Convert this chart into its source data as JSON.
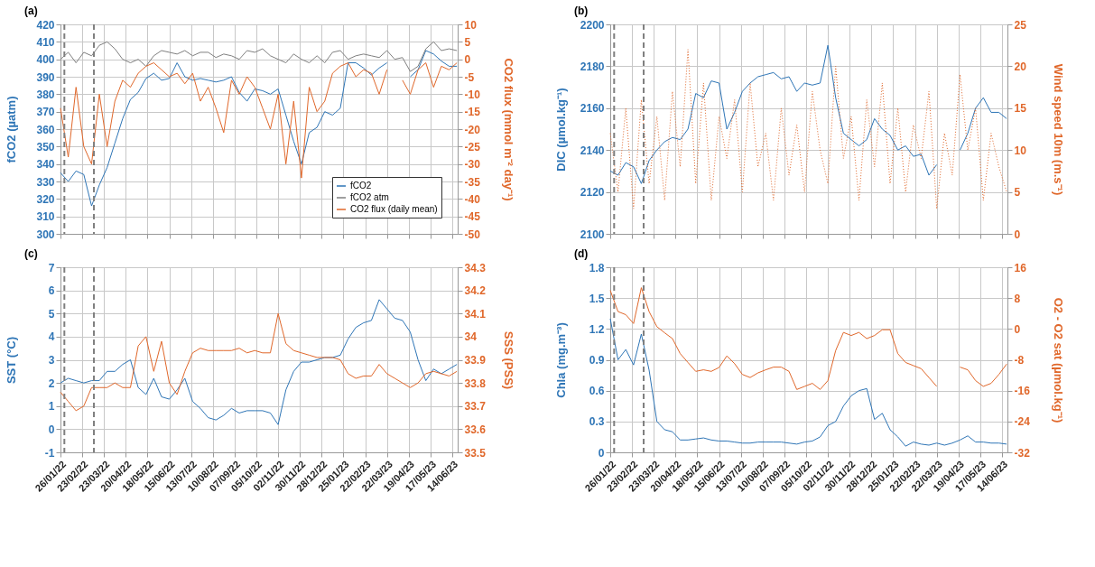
{
  "chart_data": [
    {
      "type": "line",
      "title": "(a)",
      "ylabel": "fCO2 (µatm)",
      "y2label": "CO2 flux (mmol m⁻² day⁻¹)",
      "x": [
        "2022-01-26",
        "2022-02-05",
        "2022-02-15",
        "2022-02-25",
        "2022-03-07",
        "2022-03-17",
        "2022-03-27",
        "2022-04-06",
        "2022-04-16",
        "2022-04-26",
        "2022-05-06",
        "2022-05-16",
        "2022-05-26",
        "2022-06-05",
        "2022-06-15",
        "2022-06-25",
        "2022-07-05",
        "2022-07-15",
        "2022-07-25",
        "2022-08-04",
        "2022-08-14",
        "2022-08-24",
        "2022-09-03",
        "2022-09-13",
        "2022-09-23",
        "2022-10-03",
        "2022-10-13",
        "2022-10-23",
        "2022-11-02",
        "2022-11-12",
        "2022-11-22",
        "2022-12-02",
        "2022-12-12",
        "2022-12-22",
        "2023-01-01",
        "2023-01-11",
        "2023-01-21",
        "2023-01-31",
        "2023-02-10",
        "2023-02-20",
        "2023-03-02",
        "2023-03-12",
        "2023-03-22",
        "2023-04-01",
        "2023-04-11",
        "2023-04-21",
        "2023-05-01",
        "2023-05-11",
        "2023-05-21",
        "2023-05-31",
        "2023-06-10",
        "2023-06-20"
      ],
      "xlim": [
        "2022-01-26",
        "2023-06-21"
      ],
      "xticks": [
        {
          "value": "2022-01-26",
          "label": null
        },
        {
          "value": "2022-02-23",
          "label": null
        },
        {
          "value": "2022-03-23",
          "label": null
        },
        {
          "value": "2022-04-20",
          "label": null
        },
        {
          "value": "2022-05-18",
          "label": null
        },
        {
          "value": "2022-06-15",
          "label": null
        },
        {
          "value": "2022-07-13",
          "label": null
        },
        {
          "value": "2022-08-10",
          "label": null
        },
        {
          "value": "2022-09-07",
          "label": null
        },
        {
          "value": "2022-10-05",
          "label": null
        },
        {
          "value": "2022-11-02",
          "label": null
        },
        {
          "value": "2022-11-30",
          "label": null
        },
        {
          "value": "2022-12-28",
          "label": null
        },
        {
          "value": "2023-01-25",
          "label": null
        },
        {
          "value": "2023-02-22",
          "label": null
        },
        {
          "value": "2023-03-22",
          "label": null
        },
        {
          "value": "2023-04-19",
          "label": null
        },
        {
          "value": "2023-05-17",
          "label": null
        },
        {
          "value": "2023-06-14",
          "label": null
        }
      ],
      "ylim": [
        300,
        420
      ],
      "yticks": [
        300,
        310,
        320,
        330,
        340,
        350,
        360,
        370,
        380,
        390,
        400,
        410,
        420
      ],
      "y2lim": [
        -50,
        10
      ],
      "y2ticks": [
        -50,
        -45,
        -40,
        -35,
        -30,
        -25,
        -20,
        -15,
        -10,
        -5,
        0,
        5,
        10
      ],
      "series": [
        {
          "name": "fCO2",
          "color": "#2e75b6",
          "values": [
            335,
            330,
            336,
            334,
            316,
            328,
            338,
            352,
            366,
            377,
            381,
            389,
            392,
            388,
            389,
            398,
            390,
            388,
            389,
            388,
            387,
            388,
            390,
            381,
            376,
            383,
            382,
            380,
            383,
            368,
            353,
            340,
            358,
            361,
            370,
            368,
            372,
            398,
            398,
            395,
            391,
            395,
            398,
            null,
            null,
            390,
            394,
            405,
            403,
            399,
            396,
            396
          ]
        },
        {
          "name": "fCO2 atm",
          "color": "#7f7f7f",
          "values": [
            400,
            404,
            398,
            404,
            402,
            408,
            410,
            406,
            400,
            398,
            400,
            396,
            402,
            405,
            404,
            403,
            405,
            402,
            404,
            404,
            401,
            403,
            402,
            400,
            405,
            404,
            406,
            402,
            400,
            398,
            403,
            400,
            398,
            402,
            398,
            404,
            405,
            400,
            402,
            403,
            402,
            401,
            405,
            400,
            401,
            393,
            396,
            406,
            410,
            405,
            406,
            405
          ]
        },
        {
          "name": "CO2 flux (daily mean)",
          "color": "#e0672a",
          "axis": "y2",
          "values": [
            -14,
            -28,
            -8,
            -25,
            -30,
            -10,
            -25,
            -12,
            -6,
            -8,
            -4,
            -2,
            -1,
            -3,
            -5,
            -4,
            -7,
            -4,
            -12,
            -8,
            -14,
            -21,
            -6,
            -10,
            -5,
            -8,
            -14,
            -20,
            -10,
            -30,
            -12,
            -34,
            -8,
            -15,
            -12,
            -4,
            -2,
            -1,
            -5,
            -3,
            -4,
            -10,
            -3,
            null,
            -6,
            -10,
            -3,
            -1,
            -8,
            -2,
            -3,
            -1
          ]
        }
      ],
      "ref_lines": [
        {
          "axis": "x",
          "value": "2022-01-31",
          "color": "#7f7f7f",
          "line_style": "dashed"
        },
        {
          "axis": "x",
          "value": "2022-03-10",
          "color": "#7f7f7f",
          "line_style": "dashed"
        }
      ],
      "grid": true,
      "legend": "bottom right",
      "tick_labels": "y"
    },
    {
      "type": "line",
      "title": "(b)",
      "ylabel": "DIC (µmol.kg⁻¹)",
      "y2label": "Wind speed 10m (m.s⁻¹)",
      "x": [
        "2022-01-26",
        "2022-02-05",
        "2022-02-15",
        "2022-02-25",
        "2022-03-07",
        "2022-03-17",
        "2022-03-27",
        "2022-04-06",
        "2022-04-16",
        "2022-04-26",
        "2022-05-06",
        "2022-05-16",
        "2022-05-26",
        "2022-06-05",
        "2022-06-15",
        "2022-06-25",
        "2022-07-05",
        "2022-07-15",
        "2022-07-25",
        "2022-08-04",
        "2022-08-14",
        "2022-08-24",
        "2022-09-03",
        "2022-09-13",
        "2022-09-23",
        "2022-10-03",
        "2022-10-13",
        "2022-10-23",
        "2022-11-02",
        "2022-11-12",
        "2022-11-22",
        "2022-12-02",
        "2022-12-12",
        "2022-12-22",
        "2023-01-01",
        "2023-01-11",
        "2023-01-21",
        "2023-01-31",
        "2023-02-10",
        "2023-02-20",
        "2023-03-02",
        "2023-03-12",
        "2023-03-22",
        "2023-04-01",
        "2023-04-11",
        "2023-04-21",
        "2023-05-01",
        "2023-05-11",
        "2023-05-21",
        "2023-05-31",
        "2023-06-10",
        "2023-06-20"
      ],
      "xlim": [
        "2022-01-26",
        "2023-06-21"
      ],
      "xticks": [
        {
          "value": "2022-01-26",
          "label": null
        },
        {
          "value": "2022-02-23",
          "label": null
        },
        {
          "value": "2022-03-23",
          "label": null
        },
        {
          "value": "2022-04-20",
          "label": null
        },
        {
          "value": "2022-05-18",
          "label": null
        },
        {
          "value": "2022-06-15",
          "label": null
        },
        {
          "value": "2022-07-13",
          "label": null
        },
        {
          "value": "2022-08-10",
          "label": null
        },
        {
          "value": "2022-09-07",
          "label": null
        },
        {
          "value": "2022-10-05",
          "label": null
        },
        {
          "value": "2022-11-02",
          "label": null
        },
        {
          "value": "2022-11-30",
          "label": null
        },
        {
          "value": "2022-12-28",
          "label": null
        },
        {
          "value": "2023-01-25",
          "label": null
        },
        {
          "value": "2023-02-22",
          "label": null
        },
        {
          "value": "2023-03-22",
          "label": null
        },
        {
          "value": "2023-04-19",
          "label": null
        },
        {
          "value": "2023-05-17",
          "label": null
        },
        {
          "value": "2023-06-14",
          "label": null
        }
      ],
      "ylim": [
        2100,
        2200
      ],
      "yticks": [
        2100,
        2120,
        2140,
        2160,
        2180,
        2200
      ],
      "y2lim": [
        0,
        25
      ],
      "y2ticks": [
        0,
        5,
        10,
        15,
        20,
        25
      ],
      "series": [
        {
          "color": "#2e75b6",
          "values": [
            2130,
            2128,
            2134,
            2132,
            2124,
            2135,
            2140,
            2144,
            2146,
            2145,
            2150,
            2167,
            2165,
            2173,
            2172,
            2150,
            2158,
            2168,
            2172,
            2175,
            2176,
            2177,
            2174,
            2175,
            2168,
            2172,
            2171,
            2172,
            2190,
            2165,
            2148,
            2145,
            2142,
            2145,
            2155,
            2150,
            2147,
            2140,
            2142,
            2137,
            2138,
            2128,
            2133,
            null,
            null,
            2140,
            2148,
            2160,
            2165,
            2158,
            2158,
            2155
          ]
        },
        {
          "color": "#e0672a",
          "axis": "y2",
          "line_style": "dotted",
          "values": [
            12,
            5,
            15,
            3,
            16,
            6,
            14,
            4,
            17,
            8,
            22,
            6,
            18,
            4,
            14,
            9,
            16,
            5,
            18,
            8,
            12,
            4,
            15,
            7,
            13,
            5,
            17,
            10,
            6,
            20,
            9,
            14,
            4,
            16,
            8,
            18,
            6,
            15,
            5,
            13,
            9,
            17,
            3,
            12,
            7,
            19,
            10,
            15,
            4,
            12,
            8,
            5
          ]
        }
      ],
      "ref_lines": [
        {
          "axis": "x",
          "value": "2022-01-31",
          "color": "#7f7f7f",
          "line_style": "dashed"
        },
        {
          "axis": "x",
          "value": "2022-03-10",
          "color": "#7f7f7f",
          "line_style": "dashed"
        }
      ],
      "grid": true,
      "tick_labels": "y"
    },
    {
      "type": "line",
      "title": "(c)",
      "ylabel": "SST (°C)",
      "y2label": "SSS (PSS)",
      "x": [
        "2022-01-26",
        "2022-02-05",
        "2022-02-15",
        "2022-02-25",
        "2022-03-07",
        "2022-03-17",
        "2022-03-27",
        "2022-04-06",
        "2022-04-16",
        "2022-04-26",
        "2022-05-06",
        "2022-05-16",
        "2022-05-26",
        "2022-06-05",
        "2022-06-15",
        "2022-06-25",
        "2022-07-05",
        "2022-07-15",
        "2022-07-25",
        "2022-08-04",
        "2022-08-14",
        "2022-08-24",
        "2022-09-03",
        "2022-09-13",
        "2022-09-23",
        "2022-10-03",
        "2022-10-13",
        "2022-10-23",
        "2022-11-02",
        "2022-11-12",
        "2022-11-22",
        "2022-12-02",
        "2022-12-12",
        "2022-12-22",
        "2023-01-01",
        "2023-01-11",
        "2023-01-21",
        "2023-01-31",
        "2023-02-10",
        "2023-02-20",
        "2023-03-02",
        "2023-03-12",
        "2023-03-22",
        "2023-04-01",
        "2023-04-11",
        "2023-04-21",
        "2023-05-01",
        "2023-05-11",
        "2023-05-21",
        "2023-05-31",
        "2023-06-10",
        "2023-06-20"
      ],
      "xlim": [
        "2022-01-26",
        "2023-06-21"
      ],
      "xticks": [
        {
          "value": "2022-01-26",
          "label": "26/01/22"
        },
        {
          "value": "2022-02-23",
          "label": "23/02/22"
        },
        {
          "value": "2022-03-23",
          "label": "23/03/22"
        },
        {
          "value": "2022-04-20",
          "label": "20/04/22"
        },
        {
          "value": "2022-05-18",
          "label": "18/05/22"
        },
        {
          "value": "2022-06-15",
          "label": "15/06/22"
        },
        {
          "value": "2022-07-13",
          "label": "13/07/22"
        },
        {
          "value": "2022-08-10",
          "label": "10/08/22"
        },
        {
          "value": "2022-09-07",
          "label": "07/09/22"
        },
        {
          "value": "2022-10-05",
          "label": "05/10/22"
        },
        {
          "value": "2022-11-02",
          "label": "02/11/22"
        },
        {
          "value": "2022-11-30",
          "label": "30/11/22"
        },
        {
          "value": "2022-12-28",
          "label": "28/12/22"
        },
        {
          "value": "2023-01-25",
          "label": "25/01/23"
        },
        {
          "value": "2023-02-22",
          "label": "22/02/23"
        },
        {
          "value": "2023-03-22",
          "label": "22/03/23"
        },
        {
          "value": "2023-04-19",
          "label": "19/04/23"
        },
        {
          "value": "2023-05-17",
          "label": "17/05/23"
        },
        {
          "value": "2023-06-14",
          "label": "14/06/23"
        }
      ],
      "ylim": [
        -1,
        7
      ],
      "yticks": [
        -1,
        0,
        1,
        2,
        3,
        4,
        5,
        6,
        7
      ],
      "y2lim": [
        33.5,
        34.3
      ],
      "y2ticks": [
        33.5,
        33.6,
        33.7,
        33.8,
        33.9,
        34,
        34.1,
        34.2,
        34.3
      ],
      "series": [
        {
          "color": "#2e75b6",
          "values": [
            2.0,
            2.2,
            2.1,
            2.0,
            2.1,
            2.1,
            2.5,
            2.5,
            2.8,
            3.0,
            1.8,
            1.5,
            2.2,
            1.4,
            1.3,
            1.7,
            2.2,
            1.2,
            0.9,
            0.5,
            0.4,
            0.6,
            0.9,
            0.7,
            0.8,
            0.8,
            0.8,
            0.7,
            0.2,
            1.7,
            2.5,
            2.9,
            2.9,
            3.0,
            3.1,
            3.1,
            3.2,
            3.9,
            4.4,
            4.6,
            4.7,
            5.6,
            5.2,
            4.8,
            4.7,
            4.2,
            3.0,
            2.1,
            2.6,
            2.4,
            2.6,
            2.8
          ]
        },
        {
          "color": "#e0672a",
          "axis": "y2",
          "values": [
            33.76,
            33.72,
            33.68,
            33.7,
            33.78,
            33.78,
            33.78,
            33.8,
            33.78,
            33.78,
            33.96,
            34.0,
            33.85,
            33.98,
            33.8,
            33.75,
            33.85,
            33.93,
            33.95,
            33.94,
            33.94,
            33.94,
            33.94,
            33.95,
            33.93,
            33.94,
            33.93,
            33.93,
            34.1,
            33.97,
            33.94,
            33.93,
            33.92,
            33.91,
            33.91,
            33.91,
            33.9,
            33.84,
            33.82,
            33.83,
            33.83,
            33.88,
            33.84,
            33.82,
            33.8,
            33.78,
            33.8,
            33.84,
            33.85,
            33.84,
            33.83,
            33.85
          ]
        }
      ],
      "ref_lines": [
        {
          "axis": "x",
          "value": "2022-01-31",
          "color": "#7f7f7f",
          "line_style": "dashed"
        },
        {
          "axis": "x",
          "value": "2022-03-10",
          "color": "#7f7f7f",
          "line_style": "dashed"
        }
      ],
      "grid": true
    },
    {
      "type": "line",
      "title": "(d)",
      "ylabel": "Chla (mg.m⁻³)",
      "y2label": "O2 - O2 sat (µmol.kg⁻¹)",
      "x": [
        "2022-01-26",
        "2022-02-05",
        "2022-02-15",
        "2022-02-25",
        "2022-03-07",
        "2022-03-17",
        "2022-03-27",
        "2022-04-06",
        "2022-04-16",
        "2022-04-26",
        "2022-05-06",
        "2022-05-16",
        "2022-05-26",
        "2022-06-05",
        "2022-06-15",
        "2022-06-25",
        "2022-07-05",
        "2022-07-15",
        "2022-07-25",
        "2022-08-04",
        "2022-08-14",
        "2022-08-24",
        "2022-09-03",
        "2022-09-13",
        "2022-09-23",
        "2022-10-03",
        "2022-10-13",
        "2022-10-23",
        "2022-11-02",
        "2022-11-12",
        "2022-11-22",
        "2022-12-02",
        "2022-12-12",
        "2022-12-22",
        "2023-01-01",
        "2023-01-11",
        "2023-01-21",
        "2023-01-31",
        "2023-02-10",
        "2023-02-20",
        "2023-03-02",
        "2023-03-12",
        "2023-03-22",
        "2023-04-01",
        "2023-04-11",
        "2023-04-21",
        "2023-05-01",
        "2023-05-11",
        "2023-05-21",
        "2023-05-31",
        "2023-06-10",
        "2023-06-20"
      ],
      "xlim": [
        "2022-01-26",
        "2023-06-21"
      ],
      "xticks": [
        {
          "value": "2022-01-26",
          "label": "26/01/22"
        },
        {
          "value": "2022-02-23",
          "label": "23/02/22"
        },
        {
          "value": "2022-03-23",
          "label": "23/03/22"
        },
        {
          "value": "2022-04-20",
          "label": "20/04/22"
        },
        {
          "value": "2022-05-18",
          "label": "18/05/22"
        },
        {
          "value": "2022-06-15",
          "label": "15/06/22"
        },
        {
          "value": "2022-07-13",
          "label": "13/07/22"
        },
        {
          "value": "2022-08-10",
          "label": "10/08/22"
        },
        {
          "value": "2022-09-07",
          "label": "07/09/22"
        },
        {
          "value": "2022-10-05",
          "label": "05/10/22"
        },
        {
          "value": "2022-11-02",
          "label": "02/11/22"
        },
        {
          "value": "2022-11-30",
          "label": "30/11/22"
        },
        {
          "value": "2022-12-28",
          "label": "28/12/22"
        },
        {
          "value": "2023-01-25",
          "label": "25/01/23"
        },
        {
          "value": "2023-02-22",
          "label": "22/02/23"
        },
        {
          "value": "2023-03-22",
          "label": "22/03/23"
        },
        {
          "value": "2023-04-19",
          "label": "19/04/23"
        },
        {
          "value": "2023-05-17",
          "label": "17/05/23"
        },
        {
          "value": "2023-06-14",
          "label": "14/06/23"
        }
      ],
      "ylim": [
        0,
        1.8
      ],
      "yticks": [
        0,
        0.3,
        0.6,
        0.9,
        1.2,
        1.5,
        1.8
      ],
      "y2lim": [
        -32,
        16
      ],
      "y2ticks": [
        -32,
        -24,
        -16,
        -8,
        0,
        8,
        16
      ],
      "series": [
        {
          "color": "#2e75b6",
          "values": [
            1.3,
            0.9,
            1.0,
            0.85,
            1.15,
            0.8,
            0.3,
            0.22,
            0.2,
            0.12,
            0.12,
            0.13,
            0.14,
            0.12,
            0.11,
            0.11,
            0.1,
            0.09,
            0.09,
            0.1,
            0.1,
            0.1,
            0.1,
            0.09,
            0.08,
            0.1,
            0.11,
            0.15,
            0.26,
            0.3,
            0.45,
            0.55,
            0.6,
            0.62,
            0.32,
            0.38,
            0.22,
            0.15,
            0.06,
            0.1,
            0.08,
            0.07,
            0.09,
            0.07,
            0.09,
            0.12,
            0.16,
            0.1,
            0.1,
            0.09,
            0.09,
            0.08
          ]
        },
        {
          "color": "#e0672a",
          "axis": "y2",
          "values": [
            10,
            4.5,
            3.7,
            1.4,
            10.7,
            4.5,
            0.6,
            -1,
            -2.5,
            -6.4,
            -8.7,
            -11,
            -10.6,
            -11,
            -10,
            -7,
            -9,
            -11.8,
            -12.6,
            -11.4,
            -10.6,
            -9.9,
            -9.9,
            -11,
            -15.7,
            -14.9,
            -14.1,
            -15.7,
            -13.4,
            -5.6,
            -0.9,
            -1.7,
            -0.9,
            -2.5,
            -1.7,
            -0.2,
            -0.2,
            -6.4,
            -8.7,
            -9.5,
            -10.3,
            -12.6,
            -14.9,
            null,
            null,
            -9.9,
            -10.6,
            -13.4,
            -14.9,
            -14.1,
            -11.8,
            -9.1
          ]
        }
      ],
      "ref_lines": [
        {
          "axis": "x",
          "value": "2022-01-31",
          "color": "#7f7f7f",
          "line_style": "dashed"
        },
        {
          "axis": "x",
          "value": "2022-03-10",
          "color": "#7f7f7f",
          "line_style": "dashed"
        }
      ],
      "grid": true
    }
  ]
}
